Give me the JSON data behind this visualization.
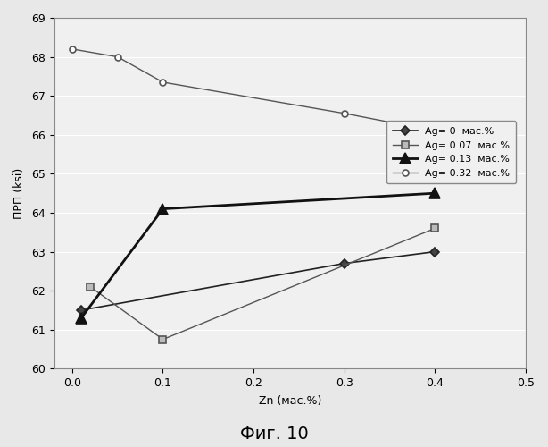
{
  "title": "",
  "xlabel": "Zn (мас.%)",
  "ylabel": "ПРП (ksi)",
  "xlim": [
    -0.02,
    0.5
  ],
  "ylim": [
    60,
    69
  ],
  "yticks": [
    60,
    61,
    62,
    63,
    64,
    65,
    66,
    67,
    68,
    69
  ],
  "xticks": [
    0,
    0.1,
    0.2,
    0.3,
    0.4,
    0.5
  ],
  "caption": "Фиг. 10",
  "series": [
    {
      "label": "Ag= 0  мас.%",
      "x": [
        0.01,
        0.3,
        0.4
      ],
      "y": [
        61.5,
        62.7,
        63.0
      ],
      "color": "#222222",
      "marker": "D",
      "markersize": 5,
      "linestyle": "-",
      "linewidth": 1.2,
      "markerfacecolor": "#444444",
      "markeredgecolor": "#222222"
    },
    {
      "label": "Ag= 0.07  мас.%",
      "x": [
        0.02,
        0.1,
        0.4
      ],
      "y": [
        62.1,
        60.75,
        63.6
      ],
      "color": "#555555",
      "marker": "s",
      "markersize": 6,
      "linestyle": "-",
      "linewidth": 1.0,
      "markerfacecolor": "#bbbbbb",
      "markeredgecolor": "#555555"
    },
    {
      "label": "Ag= 0.13  мас.%",
      "x": [
        0.01,
        0.1,
        0.4
      ],
      "y": [
        61.3,
        64.1,
        64.5
      ],
      "color": "#111111",
      "marker": "^",
      "markersize": 8,
      "linestyle": "-",
      "linewidth": 2.0,
      "markerfacecolor": "#111111",
      "markeredgecolor": "#111111"
    },
    {
      "label": "Ag= 0.32  мас.%",
      "x": [
        0.0,
        0.05,
        0.1,
        0.3,
        0.4
      ],
      "y": [
        68.2,
        68.0,
        67.35,
        66.55,
        66.1
      ],
      "color": "#555555",
      "marker": "o",
      "markersize": 5,
      "linestyle": "-",
      "linewidth": 1.0,
      "markerfacecolor": "white",
      "markeredgecolor": "#555555"
    }
  ],
  "legend_loc": "center right",
  "background_color": "#f0f0f0",
  "plot_bg_color": "#f0f0f0",
  "grid_color": "#ffffff",
  "spine_color": "#888888"
}
